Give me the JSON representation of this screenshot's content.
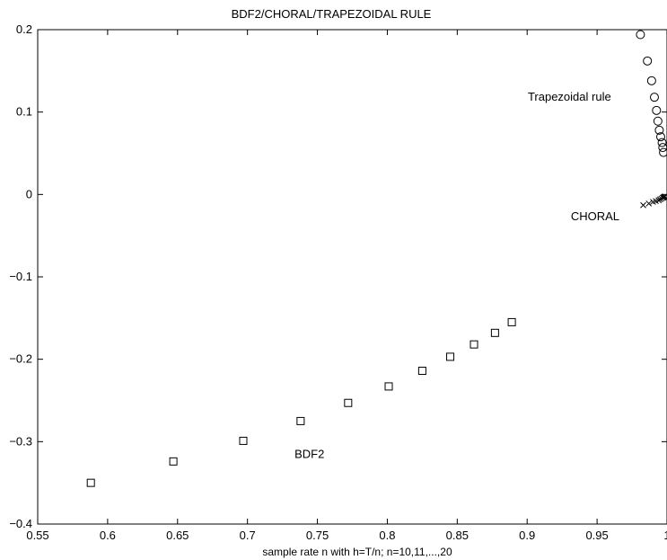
{
  "chart_data": {
    "type": "scatter",
    "title": "BDF2/CHORAL/TRAPEZOIDAL RULE",
    "xlabel": "sample rate n with h=T/n; n=10,11,...,20",
    "ylabel": "",
    "xlim": [
      0.55,
      1.0
    ],
    "ylim": [
      -0.4,
      0.2
    ],
    "grid": false,
    "xticks": [
      0.55,
      0.6,
      0.65,
      0.7,
      0.75,
      0.8,
      0.85,
      0.9,
      0.95,
      1.0
    ],
    "xtick_labels": [
      "0.55",
      "0.6",
      "0.65",
      "0.7",
      "0.75",
      "0.8",
      "0.85",
      "0.9",
      "0.95",
      "1"
    ],
    "yticks": [
      -0.4,
      -0.3,
      -0.2,
      -0.1,
      0,
      0.1,
      0.2
    ],
    "ytick_labels": [
      "−0.4",
      "−0.3",
      "−0.2",
      "−0.1",
      "0",
      "0.1",
      "0.2"
    ],
    "series": [
      {
        "name": "Trapezoidal rule",
        "marker": "circle",
        "x": [
          0.981,
          0.986,
          0.989,
          0.991,
          0.9925,
          0.9935,
          0.9945,
          0.9955,
          0.9965,
          0.997,
          0.9975
        ],
        "y": [
          0.194,
          0.162,
          0.138,
          0.118,
          0.102,
          0.089,
          0.078,
          0.07,
          0.063,
          0.057,
          0.051
        ],
        "label_at": [
          0.96,
          0.114
        ]
      },
      {
        "name": "CHORAL",
        "marker": "x",
        "x": [
          0.983,
          0.987,
          0.99,
          0.992,
          0.994,
          0.995,
          0.996,
          0.997,
          0.9975,
          0.998,
          0.9985
        ],
        "y": [
          -0.013,
          -0.011,
          -0.009,
          -0.008,
          -0.007,
          -0.006,
          -0.005,
          -0.004,
          -0.0035,
          -0.003,
          -0.0025
        ],
        "label_at": [
          0.966,
          -0.031
        ]
      },
      {
        "name": "BDF2",
        "marker": "square",
        "x": [
          0.588,
          0.647,
          0.697,
          0.738,
          0.772,
          0.801,
          0.825,
          0.845,
          0.862,
          0.877,
          0.889
        ],
        "y": [
          -0.35,
          -0.324,
          -0.299,
          -0.275,
          -0.253,
          -0.233,
          -0.214,
          -0.197,
          -0.182,
          -0.168,
          -0.155
        ],
        "label_at": [
          0.755,
          -0.32
        ]
      }
    ]
  }
}
